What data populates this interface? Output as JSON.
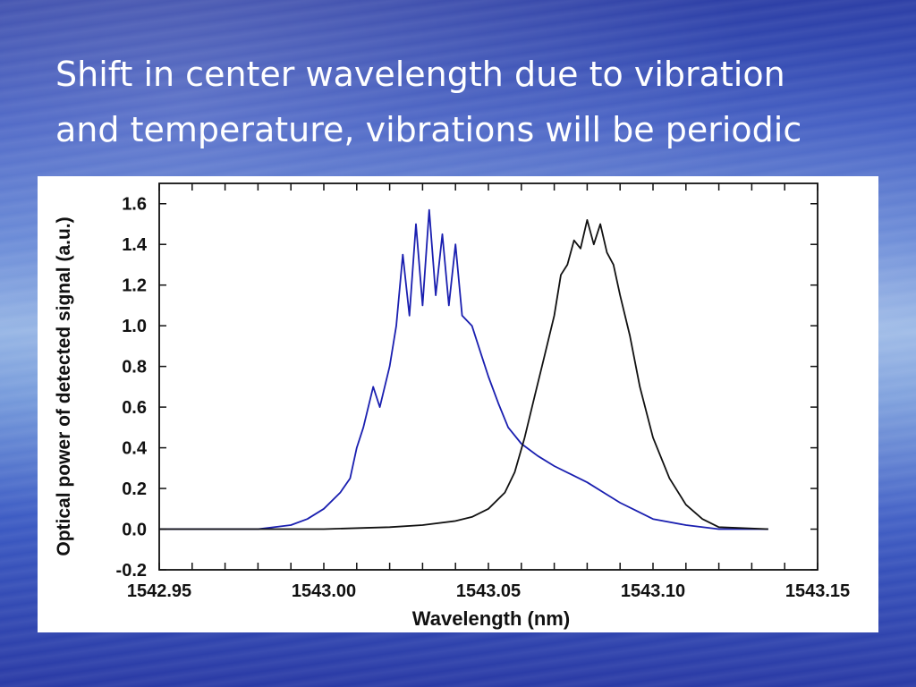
{
  "slide": {
    "title_line1": "Shift in center wavelength due to  vibration",
    "title_line2": "and temperature, vibrations will be periodic"
  },
  "chart_data": {
    "type": "line",
    "title": "",
    "xlabel": "Wavelength (nm)",
    "ylabel": "Optical power of detected signal (a.u.)",
    "xlim": [
      1542.95,
      1543.15
    ],
    "ylim": [
      -0.2,
      1.7
    ],
    "x_ticks": [
      "1542.95",
      "1543.00",
      "1543.05",
      "1543.10",
      "1543.15"
    ],
    "x_tick_values": [
      1542.95,
      1543.0,
      1543.05,
      1543.1,
      1543.15
    ],
    "y_ticks": [
      "1.6",
      "1.4",
      "1.2",
      "1.0",
      "0.8",
      "0.6",
      "0.4",
      "0.2",
      "0.0",
      "-0.2"
    ],
    "y_tick_values": [
      1.6,
      1.4,
      1.2,
      1.0,
      0.8,
      0.6,
      0.4,
      0.2,
      0.0,
      -0.2
    ],
    "grid": false,
    "series": [
      {
        "color": "#1a1fb0",
        "x": [
          1542.95,
          1542.98,
          1542.99,
          1542.995,
          1543.0,
          1543.005,
          1543.008,
          1543.01,
          1543.012,
          1543.015,
          1543.017,
          1543.02,
          1543.022,
          1543.024,
          1543.026,
          1543.028,
          1543.03,
          1543.032,
          1543.034,
          1543.036,
          1543.038,
          1543.04,
          1543.042,
          1543.045,
          1543.048,
          1543.05,
          1543.053,
          1543.056,
          1543.06,
          1543.065,
          1543.07,
          1543.075,
          1543.08,
          1543.085,
          1543.09,
          1543.095,
          1543.1,
          1543.11,
          1543.12,
          1543.13,
          1543.135
        ],
        "y": [
          0.0,
          0.0,
          0.02,
          0.05,
          0.1,
          0.18,
          0.25,
          0.4,
          0.5,
          0.7,
          0.6,
          0.8,
          1.0,
          1.35,
          1.05,
          1.5,
          1.1,
          1.57,
          1.15,
          1.45,
          1.1,
          1.4,
          1.05,
          1.0,
          0.85,
          0.75,
          0.62,
          0.5,
          0.42,
          0.36,
          0.31,
          0.27,
          0.23,
          0.18,
          0.13,
          0.09,
          0.05,
          0.02,
          0.0,
          0.0,
          0.0
        ]
      },
      {
        "color": "#111111",
        "x": [
          1542.95,
          1543.0,
          1543.02,
          1543.03,
          1543.04,
          1543.045,
          1543.05,
          1543.055,
          1543.058,
          1543.061,
          1543.064,
          1543.067,
          1543.07,
          1543.072,
          1543.074,
          1543.076,
          1543.078,
          1543.08,
          1543.082,
          1543.084,
          1543.086,
          1543.088,
          1543.09,
          1543.093,
          1543.096,
          1543.1,
          1543.105,
          1543.11,
          1543.115,
          1543.12,
          1543.135
        ],
        "y": [
          0.0,
          0.0,
          0.01,
          0.02,
          0.04,
          0.06,
          0.1,
          0.18,
          0.28,
          0.45,
          0.65,
          0.85,
          1.05,
          1.25,
          1.3,
          1.42,
          1.38,
          1.52,
          1.4,
          1.5,
          1.36,
          1.3,
          1.15,
          0.95,
          0.7,
          0.45,
          0.25,
          0.12,
          0.05,
          0.01,
          0.0
        ]
      }
    ]
  }
}
